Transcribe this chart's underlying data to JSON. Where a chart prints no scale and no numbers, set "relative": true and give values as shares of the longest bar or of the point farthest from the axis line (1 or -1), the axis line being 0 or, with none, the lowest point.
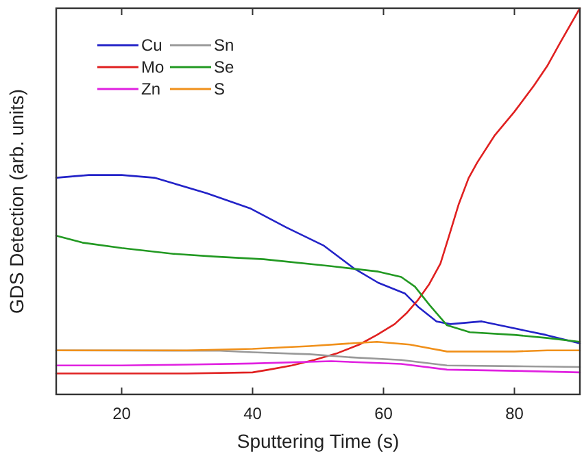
{
  "chart_data": {
    "type": "line",
    "xlabel": "Sputtering Time (s)",
    "ylabel": "GDS Detection (arb. units)",
    "relative": true,
    "xlim": [
      10,
      90
    ],
    "xticks": [
      20,
      40,
      60,
      80
    ],
    "legend": "top left",
    "grid": false,
    "series": [
      {
        "name": "Cu",
        "color": "#2323c8",
        "x": [
          10,
          15,
          20,
          25,
          28,
          33,
          39.6,
          45.2,
          50.8,
          55.6,
          59.2,
          63.3,
          65.4,
          68.1,
          70.2,
          75,
          80,
          84.8,
          90
        ],
        "values": [
          0.561,
          0.568,
          0.568,
          0.561,
          0.546,
          0.521,
          0.482,
          0.432,
          0.386,
          0.325,
          0.289,
          0.261,
          0.225,
          0.189,
          0.182,
          0.189,
          0.171,
          0.154,
          0.132
        ]
      },
      {
        "name": "Mo",
        "color": "#e02020",
        "x": [
          10,
          20,
          30,
          40,
          42.5,
          46,
          49.4,
          53,
          56.3,
          59,
          61.7,
          63.5,
          65.2,
          67,
          68.7,
          70,
          71.5,
          73,
          74.3,
          77,
          80,
          83,
          85,
          87,
          90
        ],
        "values": [
          0.054,
          0.054,
          0.054,
          0.057,
          0.064,
          0.075,
          0.089,
          0.107,
          0.129,
          0.154,
          0.182,
          0.21,
          0.243,
          0.286,
          0.339,
          0.41,
          0.493,
          0.56,
          0.6,
          0.671,
          0.732,
          0.8,
          0.85,
          0.911,
          1.0
        ]
      },
      {
        "name": "Zn",
        "color": "#e020e0",
        "x": [
          10,
          20,
          30,
          40,
          52,
          62.7,
          69.7,
          80,
          90
        ],
        "values": [
          0.075,
          0.075,
          0.077,
          0.08,
          0.086,
          0.079,
          0.064,
          0.061,
          0.057
        ]
      },
      {
        "name": "Sn",
        "color": "#999999",
        "x": [
          10,
          35,
          40,
          48.7,
          55,
          62.7,
          69.7,
          80,
          90
        ],
        "values": [
          0.114,
          0.113,
          0.109,
          0.104,
          0.096,
          0.089,
          0.075,
          0.073,
          0.071
        ]
      },
      {
        "name": "Se",
        "color": "#229922",
        "x": [
          10,
          14,
          20,
          27.9,
          34,
          41.7,
          52,
          59.2,
          62.7,
          64.8,
          67,
          69.7,
          73.2,
          80,
          85,
          90
        ],
        "values": [
          0.411,
          0.393,
          0.379,
          0.364,
          0.357,
          0.35,
          0.332,
          0.318,
          0.304,
          0.279,
          0.232,
          0.179,
          0.161,
          0.154,
          0.146,
          0.136
        ]
      },
      {
        "name": "S",
        "color": "#f0901a",
        "x": [
          10,
          20,
          30,
          40,
          48.7,
          55,
          59,
          64,
          69.7,
          75,
          80,
          85,
          90
        ],
        "values": [
          0.114,
          0.114,
          0.114,
          0.118,
          0.125,
          0.132,
          0.136,
          0.129,
          0.111,
          0.111,
          0.111,
          0.114,
          0.114
        ]
      }
    ]
  }
}
